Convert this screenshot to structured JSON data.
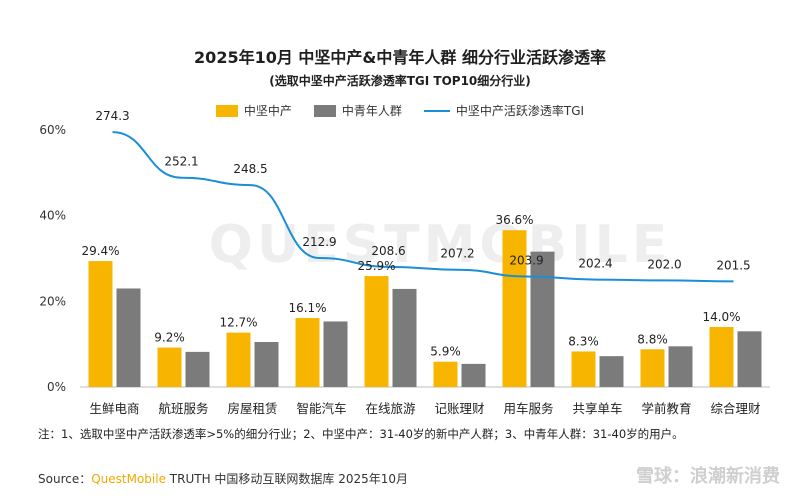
{
  "header": {
    "title": "2025年10月 中坚中产&中青年人群 细分行业活跃渗透率",
    "subtitle": "(选取中坚中产活跃渗透率TGI TOP10细分行业)"
  },
  "legend": [
    {
      "label": "中坚中产",
      "color": "#f7b500"
    },
    {
      "label": "中青年人群",
      "color": "#7b7b7b"
    },
    {
      "label": "中坚中产活跃渗透率TGI",
      "color": "#1a8fd8"
    }
  ],
  "watermark": "QUESTMOBILE",
  "chart_data": {
    "type": "bar",
    "categories": [
      "生鲜电商",
      "航班服务",
      "房屋租赁",
      "智能汽车",
      "在线旅游",
      "记账理财",
      "用车服务",
      "共享单车",
      "学前教育",
      "综合理财"
    ],
    "ylim": [
      0,
      60
    ],
    "yticks": [
      "0%",
      "20%",
      "40%",
      "60%"
    ],
    "series": [
      {
        "name": "中坚中产",
        "type": "bar",
        "color": "#f7b500",
        "values": [
          29.4,
          9.2,
          12.7,
          16.1,
          25.9,
          5.9,
          36.6,
          8.3,
          8.8,
          14.0
        ],
        "labels": [
          "29.4%",
          "9.2%",
          "12.7%",
          "16.1%",
          "25.9%",
          "5.9%",
          "36.6%",
          "8.3%",
          "8.8%",
          "14.0%"
        ]
      },
      {
        "name": "中青年人群",
        "type": "bar",
        "color": "#7b7b7b",
        "values": [
          23.0,
          8.2,
          10.5,
          15.3,
          22.9,
          5.4,
          31.6,
          7.2,
          9.5,
          13.0
        ]
      },
      {
        "name": "中坚中产活跃渗透率TGI",
        "type": "line",
        "color": "#1a8fd8",
        "values": [
          274.3,
          252.1,
          248.5,
          212.9,
          208.6,
          207.2,
          203.9,
          202.4,
          202.0,
          201.5
        ],
        "labels": [
          "274.3",
          "252.1",
          "248.5",
          "212.9",
          "208.6",
          "207.2",
          "203.9",
          "202.4",
          "202.0",
          "201.5"
        ]
      }
    ]
  },
  "footer": {
    "note": "注：1、选取中坚中产活跃渗透率>5%的细分行业；2、中坚中产：31-40岁的新中产人群；3、中青年人群：31-40岁的用户。",
    "source_prefix": "Source：",
    "source_brand": "QuestMobile",
    "source_rest": " TRUTH 中国移动互联网数据库 2025年10月",
    "xueqiu": "雪球：浪潮新消费"
  }
}
